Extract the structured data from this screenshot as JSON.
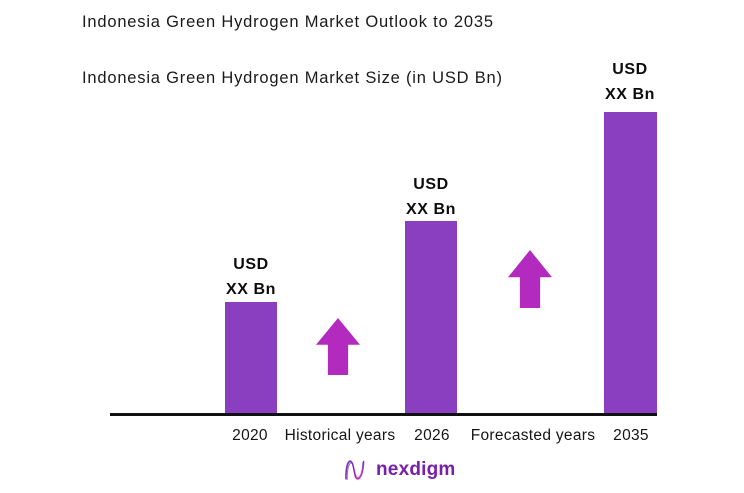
{
  "chart_data": {
    "type": "bar",
    "title": "Indonesia Green Hydrogen Market Outlook to 2035",
    "subtitle": "Indonesia Green Hydrogen Market Size (in USD Bn)",
    "categories": [
      "2020",
      "2026",
      "2035"
    ],
    "values": [
      "XX",
      "XX",
      "XX"
    ],
    "unit": "USD Bn",
    "bar_value_labels": [
      {
        "line1": "USD",
        "line2": "XX Bn"
      },
      {
        "line1": "USD",
        "line2": "XX Bn"
      },
      {
        "line1": "USD",
        "line2": "XX Bn"
      }
    ],
    "relative_heights": [
      0.37,
      0.64,
      1.0
    ],
    "x_axis_annotations": [
      "Historical years",
      "Forecasted years"
    ],
    "arrows": [
      "up-arrow-icon",
      "up-arrow-icon"
    ],
    "xlabel": "",
    "ylabel": "",
    "grid": false,
    "legend": false
  },
  "colors": {
    "background": "#FFFFFF",
    "bar": "#8A3FC0",
    "arrow": "#B32BBE",
    "text": "#1A1A1A",
    "axis": "#111111",
    "logo": "#7A1FA8"
  },
  "footer": {
    "logo_text": "nexdigm",
    "logo_icon": "nexdigm-n-wave-icon"
  }
}
